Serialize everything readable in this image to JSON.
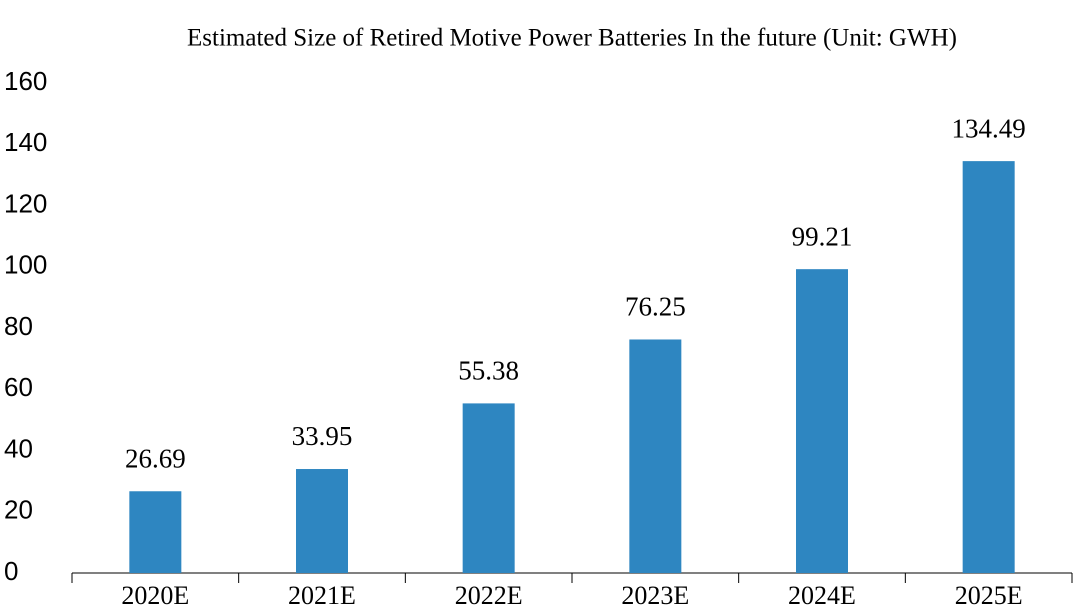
{
  "chart_data": {
    "type": "bar",
    "title": "Estimated Size of Retired Motive Power Batteries In the future (Unit: GWH)",
    "categories": [
      "2020E",
      "2021E",
      "2022E",
      "2023E",
      "2024E",
      "2025E"
    ],
    "values": [
      26.69,
      33.95,
      55.38,
      76.25,
      99.21,
      134.49
    ],
    "color": "#2e86c1",
    "ylim": [
      0,
      160
    ],
    "yticks": [
      0,
      20,
      40,
      60,
      80,
      100,
      120,
      140,
      160
    ],
    "grid": false
  }
}
